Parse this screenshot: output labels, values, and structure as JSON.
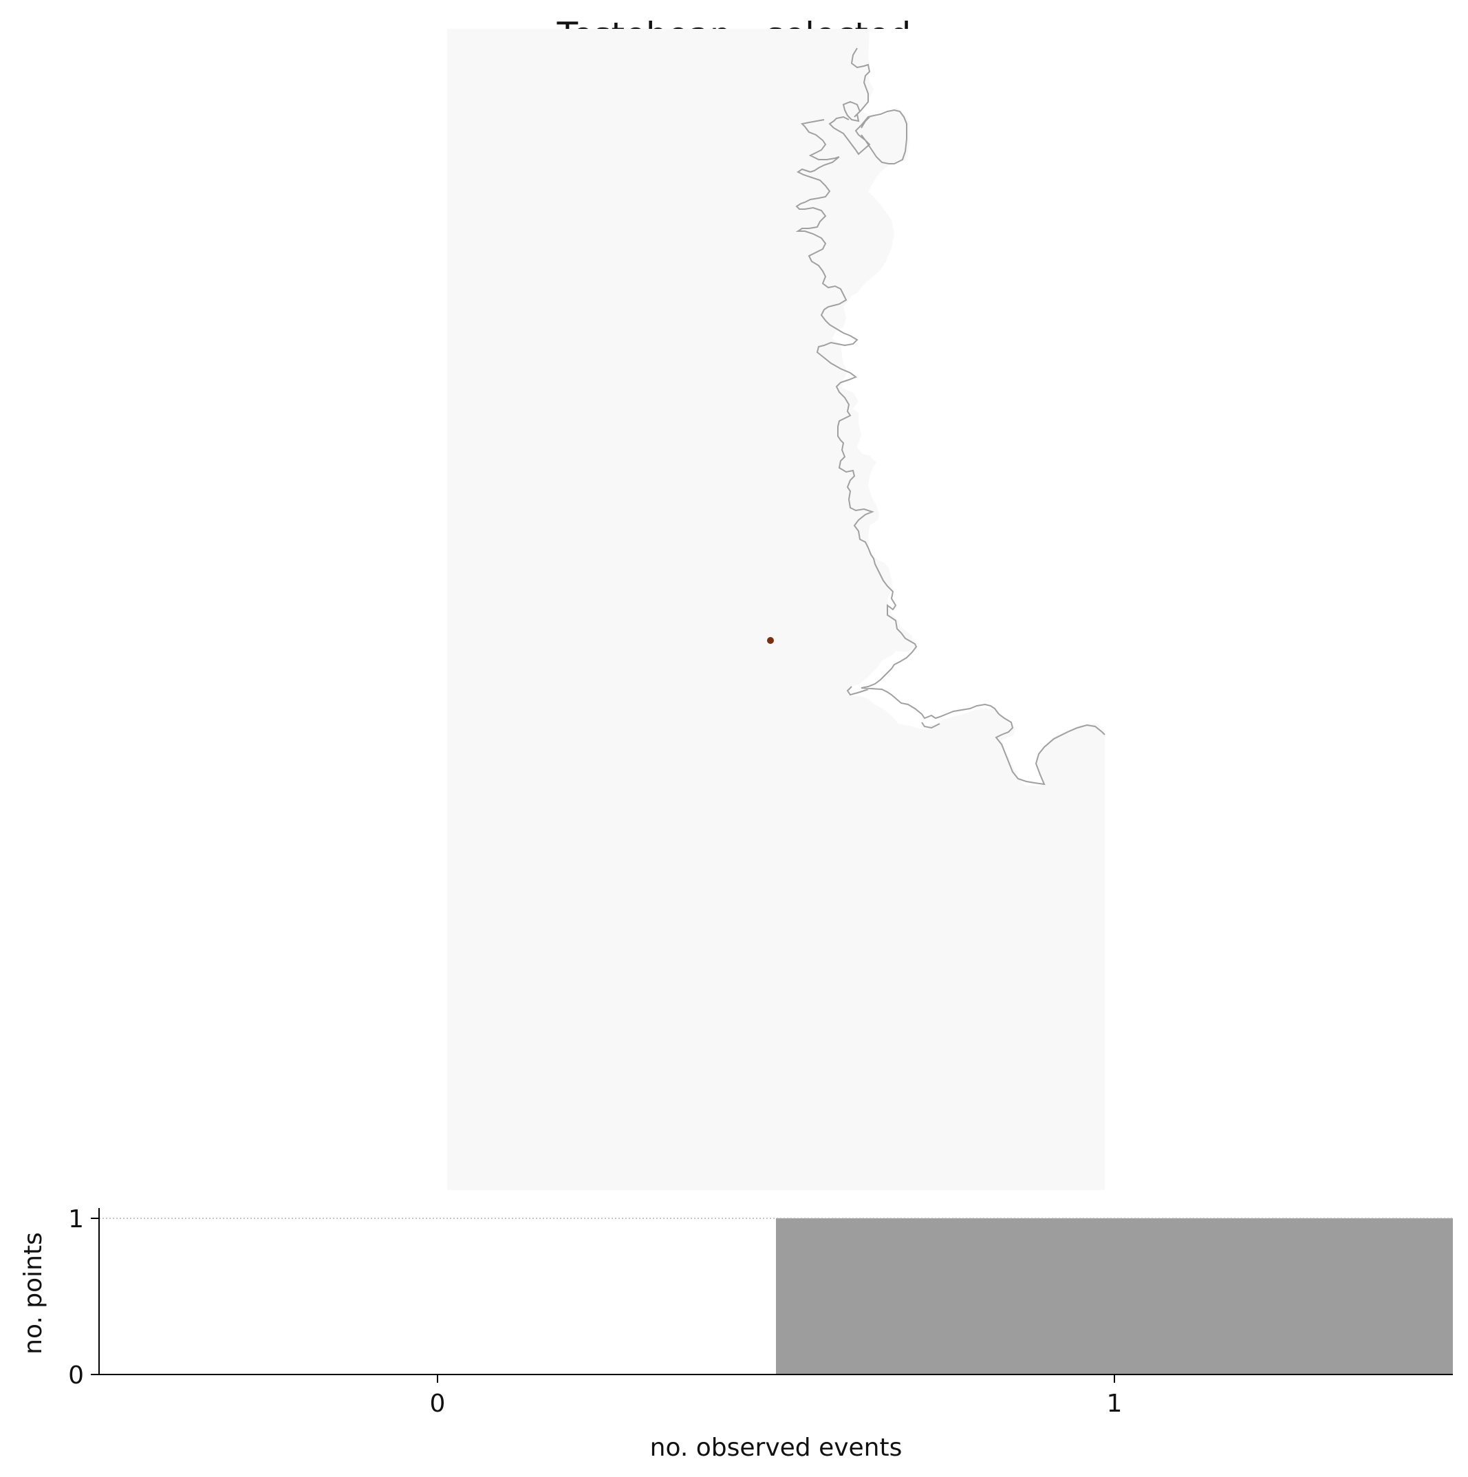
{
  "title": "Testeboan - selected",
  "map": {
    "land_color": "#f8f8f8",
    "coast_color": "#a0a0a0",
    "point_color": "#7a2e12",
    "points_shown": 1
  },
  "chart_data": {
    "type": "bar",
    "categories": [
      "0",
      "1"
    ],
    "values": [
      0,
      1
    ],
    "xlabel": "no. observed events",
    "ylabel": "no. points",
    "ylim": [
      0,
      1
    ],
    "yticks": [
      "0",
      "1"
    ],
    "xticks": [
      "0",
      "1"
    ],
    "bar_color": "#9d9d9d",
    "reference_line": 1
  }
}
